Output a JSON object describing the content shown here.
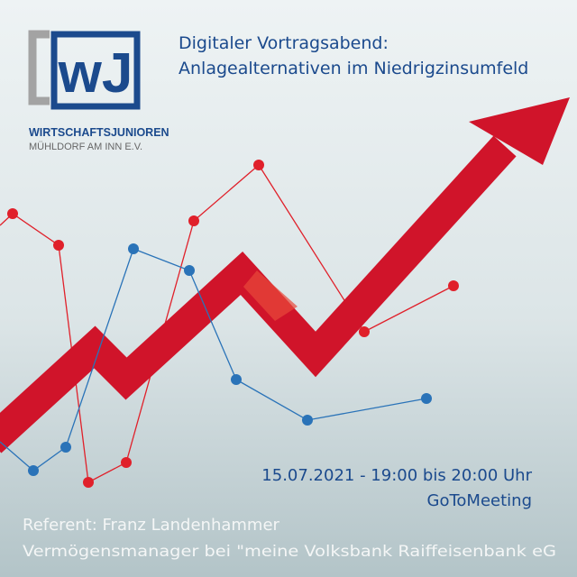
{
  "logo": {
    "mark": "wJ",
    "name": "WIRTSCHAFTSJUNIOREN",
    "place": "MÜHLDORF AM INN E.V."
  },
  "title": [
    "Digitaler Vortragsabend:",
    "Anlagealternativen im Niedrigzinsumfeld"
  ],
  "event": {
    "date": "15.07.2021 - 19:00 bis 20:00 Uhr",
    "platform": "GoToMeeting"
  },
  "speaker": {
    "name": "Referent: Franz Landenhammer",
    "role": "Vermögensmanager bei \"meine Volksbank Raiffeisenbank eG"
  }
}
